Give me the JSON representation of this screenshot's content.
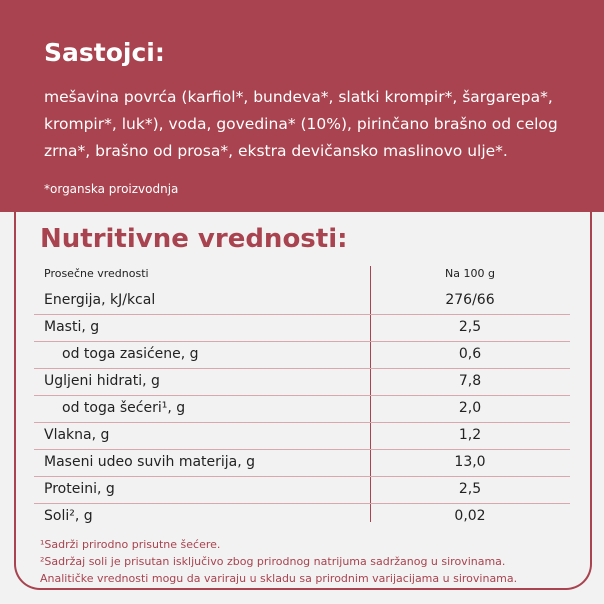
{
  "ingredients": {
    "title": "Sastojci:",
    "text": "mešavina povrća (karfiol*, bundeva*, slatki krompir*, šargarepa*, krompir*, luk*), voda, govedina* (10%), pirinčano brašno od celog zrna*, brašno od prosa*, ekstra devičansko maslinovo ulje*.",
    "note": "*organska proizvodnja"
  },
  "nutrition": {
    "title": "Nutritivne vrednosti:",
    "header": {
      "label": "Prosečne vrednosti",
      "value": "Na 100 g"
    },
    "rows": [
      {
        "label": "Energija, kJ/kcal",
        "value": "276/66"
      },
      {
        "label": "Masti, g",
        "value": "2,5"
      },
      {
        "label": "od toga zasićene, g",
        "value": "0,6"
      },
      {
        "label": "Ugljeni hidrati, g",
        "value": "7,8"
      },
      {
        "label": "od toga šećeri¹, g",
        "value": "2,0"
      },
      {
        "label": "Vlakna, g",
        "value": "1,2"
      },
      {
        "label": "Maseni udeo suvih materija, g",
        "value": "13,0"
      },
      {
        "label": "Proteini, g",
        "value": "2,5"
      },
      {
        "label": "Soli², g",
        "value": "0,02"
      }
    ],
    "footnotes": [
      "¹Sadrži prirodno prisutne šećere.",
      "²Sadržaj soli je prisutan isključivo zbog prirodnog natrijuma sadržanog u sirovinama.",
      "Analitičke vrednosti mogu da variraju u skladu sa prirodnim varijacijama u sirovinama."
    ]
  },
  "colors": {
    "brand": "#a8434f",
    "background": "#f2f2f2"
  }
}
